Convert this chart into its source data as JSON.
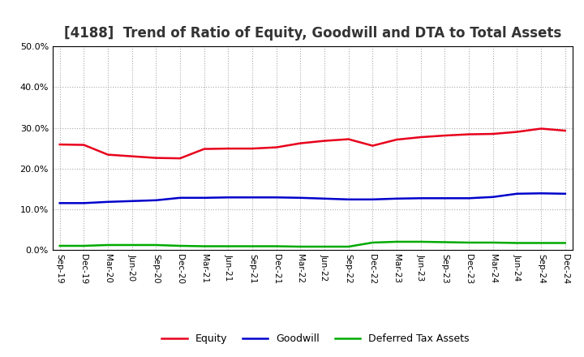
{
  "title": "[4188]  Trend of Ratio of Equity, Goodwill and DTA to Total Assets",
  "x_labels": [
    "Sep-19",
    "Dec-19",
    "Mar-20",
    "Jun-20",
    "Sep-20",
    "Dec-20",
    "Mar-21",
    "Jun-21",
    "Sep-21",
    "Dec-21",
    "Mar-22",
    "Jun-22",
    "Sep-22",
    "Dec-22",
    "Mar-23",
    "Jun-23",
    "Sep-23",
    "Dec-23",
    "Mar-24",
    "Jun-24",
    "Sep-24",
    "Dec-24"
  ],
  "equity": [
    0.259,
    0.258,
    0.234,
    0.23,
    0.226,
    0.225,
    0.248,
    0.249,
    0.249,
    0.252,
    0.262,
    0.268,
    0.272,
    0.256,
    0.271,
    0.277,
    0.281,
    0.284,
    0.285,
    0.29,
    0.298,
    0.293
  ],
  "goodwill": [
    0.115,
    0.115,
    0.118,
    0.12,
    0.122,
    0.128,
    0.128,
    0.129,
    0.129,
    0.129,
    0.128,
    0.126,
    0.124,
    0.124,
    0.126,
    0.127,
    0.127,
    0.127,
    0.13,
    0.138,
    0.139,
    0.138
  ],
  "dta": [
    0.01,
    0.01,
    0.012,
    0.012,
    0.012,
    0.01,
    0.009,
    0.009,
    0.009,
    0.009,
    0.008,
    0.008,
    0.008,
    0.018,
    0.02,
    0.02,
    0.019,
    0.018,
    0.018,
    0.017,
    0.017,
    0.017
  ],
  "equity_color": "#e8001c",
  "goodwill_color": "#0000cc",
  "dta_color": "#00aa00",
  "bg_color": "#ffffff",
  "plot_bg_color": "#ffffff",
  "grid_color": "#aaaaaa",
  "ylim": [
    0.0,
    0.5
  ],
  "yticks": [
    0.0,
    0.1,
    0.2,
    0.3,
    0.4,
    0.5
  ],
  "title_fontsize": 12,
  "legend_labels": [
    "Equity",
    "Goodwill",
    "Deferred Tax Assets"
  ]
}
